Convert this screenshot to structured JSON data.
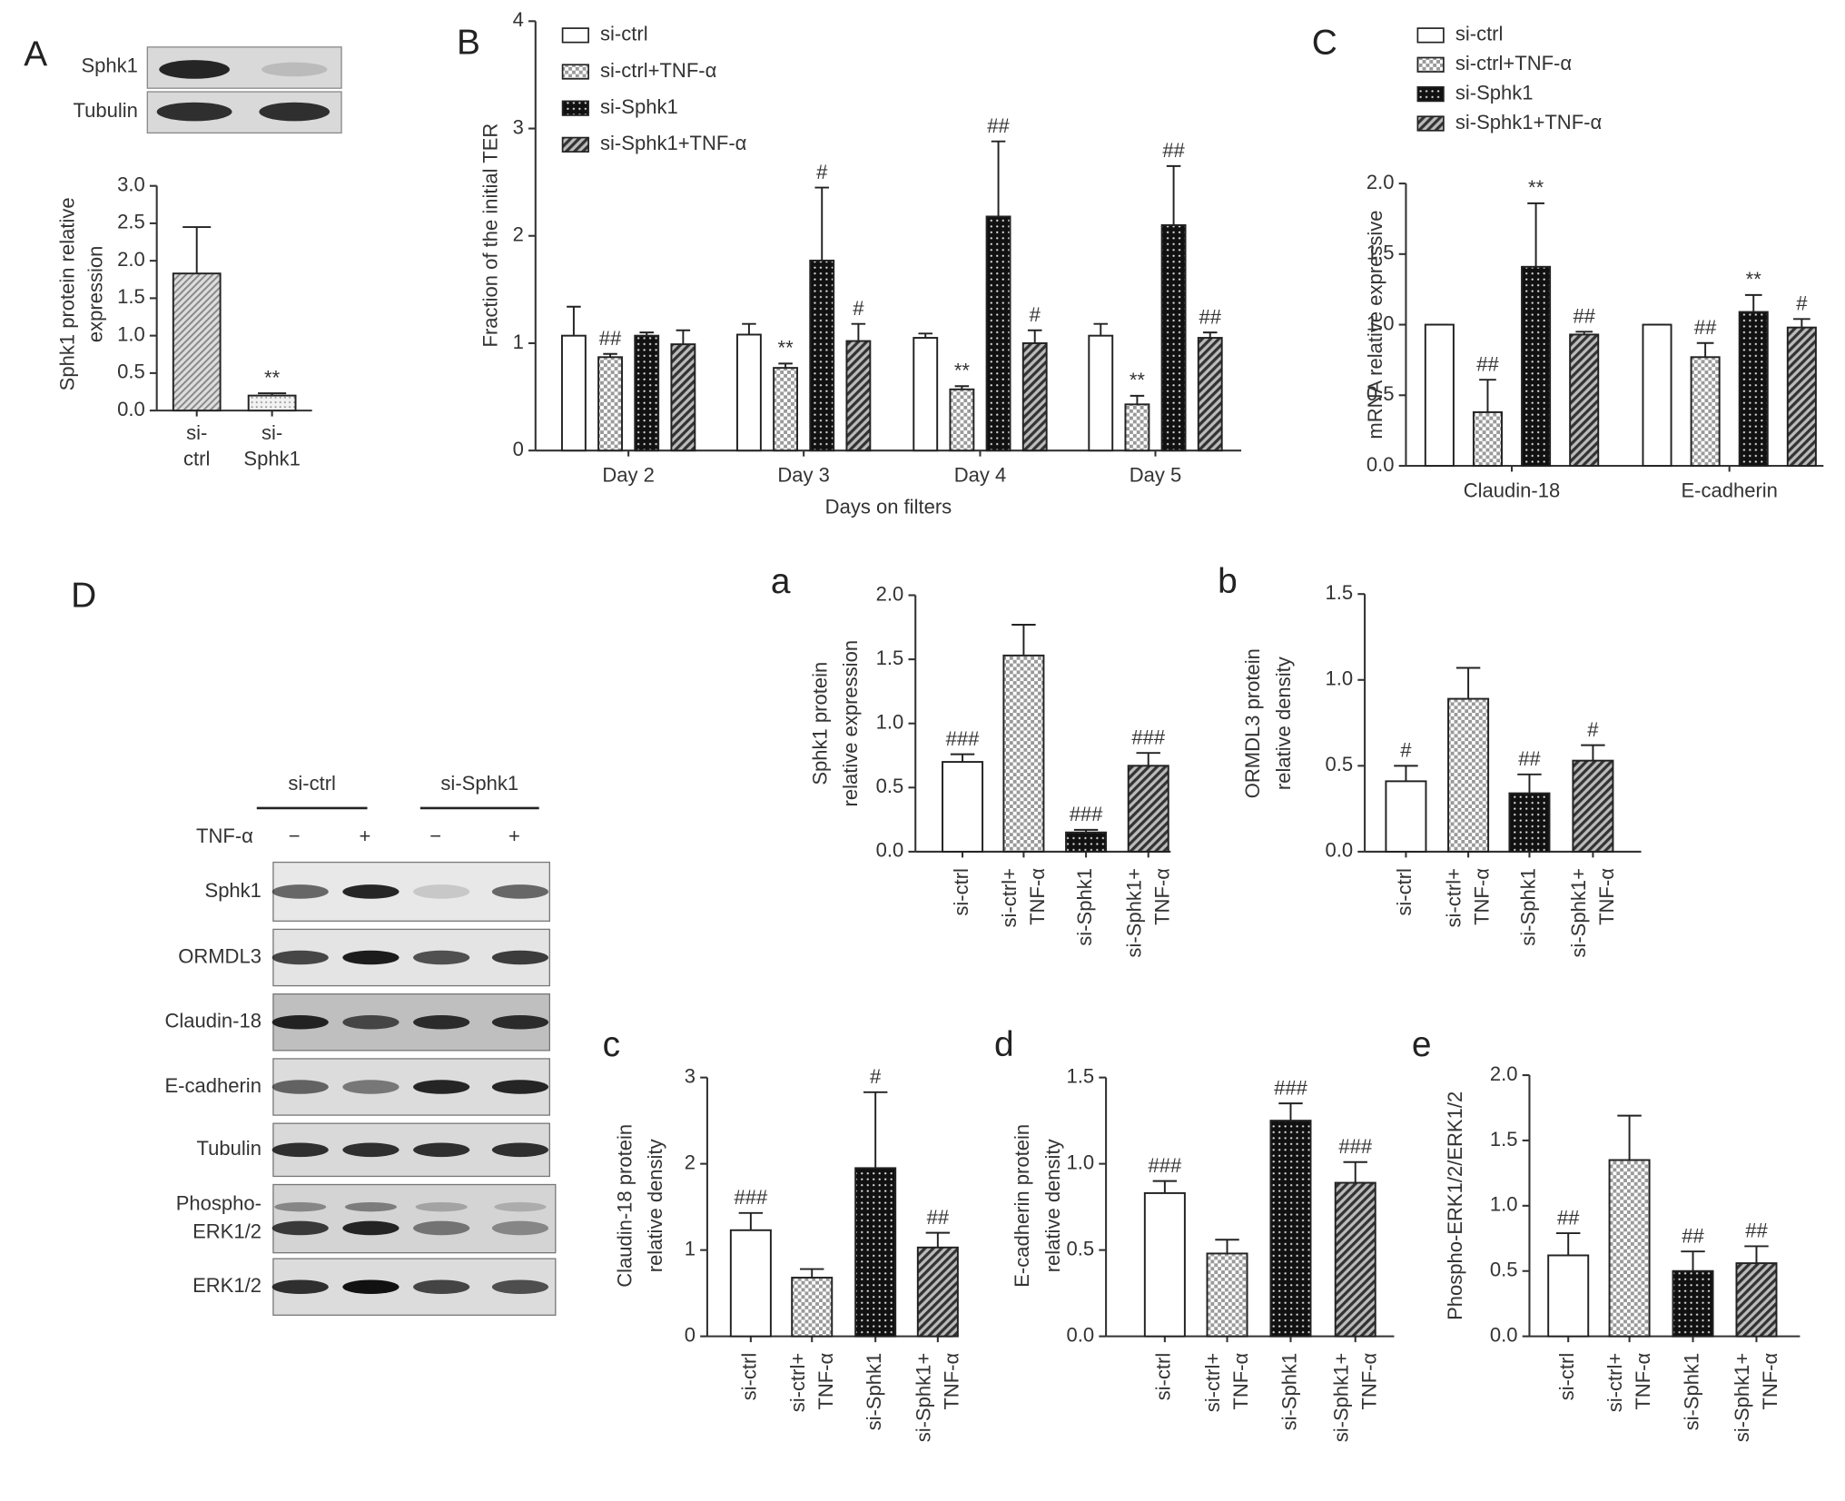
{
  "chart_data": [
    {
      "type": "bar",
      "panel": "A",
      "y_label": [
        "Sphk1 protein relative",
        "expression"
      ],
      "categories": [
        [
          "si-",
          "ctrl"
        ],
        [
          "si-",
          "Sphk1"
        ]
      ],
      "values": [
        1.83,
        0.2
      ],
      "errors": [
        0.62,
        0.03
      ],
      "annotations": [
        null,
        "**"
      ],
      "patterns": [
        "hatch",
        "stipple"
      ],
      "ylim": [
        0,
        3
      ],
      "yticks": [
        {
          "value": 0,
          "label": "0.0"
        },
        0.5,
        {
          "value": 1,
          "label": "1.0"
        },
        1.5,
        {
          "value": 2,
          "label": "2.0"
        },
        2.5,
        {
          "value": 3,
          "label": "3.0"
        }
      ]
    },
    {
      "type": "bar",
      "panel": "B",
      "y_label": [
        "Fraction of the initial TER"
      ],
      "x_label": "Days on filters",
      "categories": [
        "Day 2",
        "Day 3",
        "Day 4",
        "Day 5"
      ],
      "legend": "upper left",
      "series": [
        {
          "name": "si-ctrl",
          "pattern": "none",
          "values": [
            1.07,
            1.08,
            1.05,
            1.07
          ],
          "errors": [
            0.27,
            0.1,
            0.04,
            0.11
          ],
          "annotations": [
            null,
            null,
            null,
            null
          ]
        },
        {
          "name": "si-ctrl+TNF-α",
          "pattern": "checker",
          "values": [
            0.87,
            0.77,
            0.57,
            0.43
          ],
          "errors": [
            0.03,
            0.04,
            0.03,
            0.08
          ],
          "annotations": [
            "##",
            "**",
            "**",
            "**"
          ]
        },
        {
          "name": "si-Sphk1",
          "pattern": "dots",
          "values": [
            1.07,
            1.77,
            2.18,
            2.1
          ],
          "errors": [
            0.03,
            0.68,
            0.7,
            0.55
          ],
          "annotations": [
            null,
            "#",
            "##",
            "##"
          ]
        },
        {
          "name": "si-Sphk1+TNF-α",
          "pattern": "diag",
          "values": [
            0.99,
            1.02,
            1.0,
            1.05
          ],
          "errors": [
            0.13,
            0.16,
            0.12,
            0.05
          ],
          "annotations": [
            null,
            "#",
            "#",
            "##"
          ]
        }
      ],
      "ylim": [
        0,
        4
      ],
      "yticks": [
        0,
        1,
        2,
        3,
        4
      ]
    },
    {
      "type": "bar",
      "panel": "C",
      "y_label": [
        "mRNA relative expressive"
      ],
      "categories": [
        "Claudin-18",
        "E-cadherin"
      ],
      "legend": "upper left",
      "series": [
        {
          "name": "si-ctrl",
          "pattern": "none",
          "values": [
            1.0,
            1.0
          ],
          "errors": [
            0,
            0
          ],
          "annotations": [
            null,
            null
          ]
        },
        {
          "name": "si-ctrl+TNF-α",
          "pattern": "checker",
          "values": [
            0.38,
            0.77
          ],
          "errors": [
            0.23,
            0.1
          ],
          "annotations": [
            "##",
            "##"
          ]
        },
        {
          "name": "si-Sphk1",
          "pattern": "dots",
          "values": [
            1.41,
            1.09
          ],
          "errors": [
            0.45,
            0.12
          ],
          "annotations": [
            "**",
            "**"
          ]
        },
        {
          "name": "si-Sphk1+TNF-α",
          "pattern": "diag",
          "values": [
            0.93,
            0.98
          ],
          "errors": [
            0.02,
            0.06
          ],
          "annotations": [
            "##",
            "#"
          ]
        }
      ],
      "ylim": [
        0,
        2
      ],
      "yticks": [
        {
          "value": 0,
          "label": "0.0"
        },
        0.5,
        {
          "value": 1,
          "label": "1.0"
        },
        1.5,
        {
          "value": 2,
          "label": "2.0"
        }
      ]
    },
    {
      "type": "bar",
      "panel": "a",
      "y_label": [
        "Sphk1 protein",
        "relative expression"
      ],
      "categories": [
        [
          "si-ctrl"
        ],
        [
          "si-ctrl+",
          "TNF-α"
        ],
        [
          "si-Sphk1"
        ],
        [
          "si-Sphk1+",
          "TNF-α"
        ]
      ],
      "values": [
        0.7,
        1.53,
        0.15,
        0.67
      ],
      "errors": [
        0.06,
        0.24,
        0.02,
        0.1
      ],
      "annotations": [
        "###",
        null,
        "###",
        "###"
      ],
      "patterns": [
        "none",
        "checker",
        "dots",
        "diag"
      ],
      "ylim": [
        0,
        2
      ],
      "yticks": [
        {
          "value": 0,
          "label": "0.0"
        },
        0.5,
        {
          "value": 1,
          "label": "1.0"
        },
        1.5,
        {
          "value": 2,
          "label": "2.0"
        }
      ]
    },
    {
      "type": "bar",
      "panel": "b",
      "y_label": [
        "ORMDL3 protein",
        "relative density"
      ],
      "categories": [
        [
          "si-ctrl"
        ],
        [
          "si-ctrl+",
          "TNF-α"
        ],
        [
          "si-Sphk1"
        ],
        [
          "si-Sphk1+",
          "TNF-α"
        ]
      ],
      "values": [
        0.41,
        0.89,
        0.34,
        0.53
      ],
      "errors": [
        0.09,
        0.18,
        0.11,
        0.09
      ],
      "annotations": [
        "#",
        null,
        "##",
        "#"
      ],
      "patterns": [
        "none",
        "checker",
        "dots",
        "diag"
      ],
      "ylim": [
        0,
        1.5
      ],
      "yticks": [
        {
          "value": 0,
          "label": "0.0"
        },
        0.5,
        {
          "value": 1,
          "label": "1.0"
        },
        1.5
      ]
    },
    {
      "type": "bar",
      "panel": "c",
      "y_label": [
        "Claudin-18 protein",
        "relative density"
      ],
      "categories": [
        [
          "si-ctrl"
        ],
        [
          "si-ctrl+",
          "TNF-α"
        ],
        [
          "si-Sphk1"
        ],
        [
          "si-Sphk1+",
          "TNF-α"
        ]
      ],
      "values": [
        1.23,
        0.68,
        1.95,
        1.03
      ],
      "errors": [
        0.2,
        0.1,
        0.88,
        0.17
      ],
      "annotations": [
        "###",
        null,
        "#",
        "##"
      ],
      "patterns": [
        "none",
        "checker",
        "dots",
        "diag"
      ],
      "ylim": [
        0,
        3
      ],
      "yticks": [
        0,
        1,
        2,
        3
      ]
    },
    {
      "type": "bar",
      "panel": "d",
      "y_label": [
        "E-cadherin protein",
        "relative density"
      ],
      "categories": [
        [
          "si-ctrl"
        ],
        [
          "si-ctrl+",
          "TNF-α"
        ],
        [
          "si-Sphk1"
        ],
        [
          "si-Sphk1+",
          "TNF-α"
        ]
      ],
      "values": [
        0.83,
        0.48,
        1.25,
        0.89
      ],
      "errors": [
        0.07,
        0.08,
        0.1,
        0.12
      ],
      "annotations": [
        "###",
        null,
        "###",
        "###"
      ],
      "patterns": [
        "none",
        "checker",
        "dots",
        "diag"
      ],
      "ylim": [
        0,
        1.5
      ],
      "yticks": [
        {
          "value": 0,
          "label": "0.0"
        },
        0.5,
        {
          "value": 1,
          "label": "1.0"
        },
        1.5
      ]
    },
    {
      "type": "bar",
      "panel": "e",
      "y_label": [
        "Phospho-ERK1/2/ERK1/2"
      ],
      "categories": [
        [
          "si-ctrl"
        ],
        [
          "si-ctrl+",
          "TNF-α"
        ],
        [
          "si-Sphk1"
        ],
        [
          "si-Sphk1+",
          "TNF-α"
        ]
      ],
      "values": [
        0.62,
        1.35,
        0.5,
        0.56
      ],
      "errors": [
        0.17,
        0.34,
        0.15,
        0.13
      ],
      "annotations": [
        "##",
        null,
        "##",
        "##"
      ],
      "patterns": [
        "none",
        "checker",
        "dots",
        "diag"
      ],
      "ylim": [
        0,
        2
      ],
      "yticks": [
        {
          "value": 0,
          "label": "0.0"
        },
        0.5,
        {
          "value": 1,
          "label": "1.0"
        },
        1.5,
        {
          "value": 2,
          "label": "2.0"
        }
      ]
    }
  ],
  "blot_a": {
    "rows": [
      "Sphk1",
      "Tubulin"
    ]
  },
  "blot_d": {
    "panel": "D",
    "groups": [
      "si-ctrl",
      "si-Sphk1"
    ],
    "treatment": "TNF-α",
    "signs": [
      "−",
      "+",
      "−",
      "+"
    ],
    "rows": [
      [
        "Sphk1"
      ],
      [
        "ORMDL3"
      ],
      [
        "Claudin-18"
      ],
      [
        "E-cadherin"
      ],
      [
        "Tubulin"
      ],
      [
        "Phospho-",
        "ERK1/2"
      ],
      [
        "ERK1/2"
      ]
    ]
  }
}
